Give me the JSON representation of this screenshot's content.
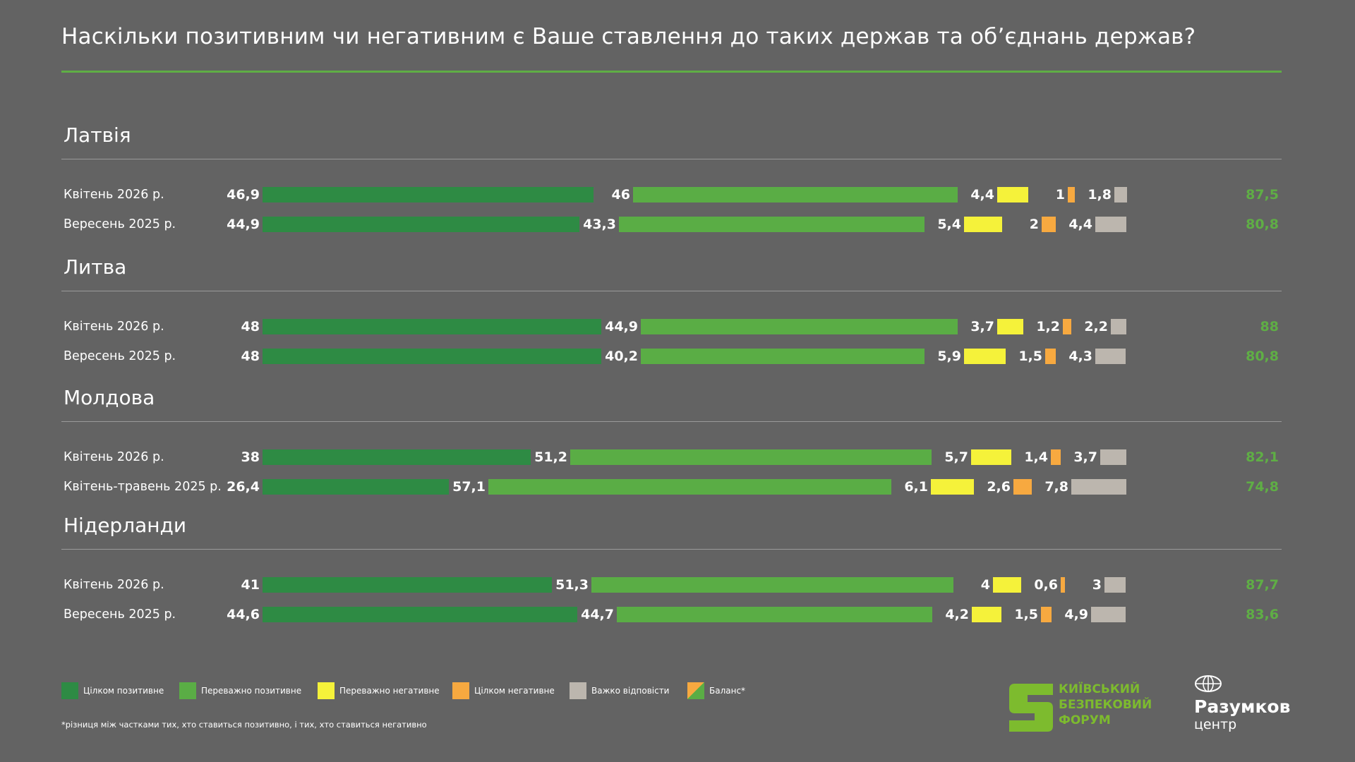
{
  "title": "Наскільки позитивним чи негативним є Ваше ставлення до таких держав та об’єднань держав?",
  "colors": {
    "fully_positive": "#2e8b44",
    "mostly_positive": "#5aad45",
    "mostly_negative": "#f5f23a",
    "fully_negative": "#f7a940",
    "hard_to_say": "#bcb6ae",
    "balance_text": "#5fae45",
    "accent_rule": "#5fae45"
  },
  "legend": [
    {
      "key": "fully_positive",
      "label": "Цілком позитивне"
    },
    {
      "key": "mostly_positive",
      "label": "Переважно позитивне"
    },
    {
      "key": "mostly_negative",
      "label": "Переважно негативне"
    },
    {
      "key": "fully_negative",
      "label": "Цілком негативне"
    },
    {
      "key": "hard_to_say",
      "label": "Важко відповісти"
    },
    {
      "key": "balance",
      "label": "Баланс*"
    }
  ],
  "footnote": "*різниця між частками тих, хто ставиться позитивно, і тих, хто ставиться негативно",
  "logos": {
    "kbf_lines": [
      "КИЇВСЬКИЙ",
      "БЕЗПЕКОВИЙ",
      "ФОРУМ"
    ],
    "razumkov_name": "Разумков",
    "razumkov_sub": "центр"
  },
  "chart_data": {
    "type": "bar",
    "orientation": "horizontal",
    "stacked": true,
    "segments": [
      "Цілком позитивне",
      "Переважно позитивне",
      "Переважно негативне",
      "Цілком негативне",
      "Важко відповісти"
    ],
    "groups": [
      {
        "country": "Латвія",
        "rows": [
          {
            "period": "Квітень  2026 р.",
            "values": [
              "46,9",
              "46",
              "4,4",
              "1",
              "1,8"
            ],
            "balance": "87,5"
          },
          {
            "period": "Вересень 2025 р.",
            "values": [
              "44,9",
              "43,3",
              "5,4",
              "2",
              "4,4"
            ],
            "balance": "80,8"
          }
        ]
      },
      {
        "country": "Литва",
        "rows": [
          {
            "period": "Квітень  2026 р.",
            "values": [
              "48",
              "44,9",
              "3,7",
              "1,2",
              "2,2"
            ],
            "balance": "88"
          },
          {
            "period": "Вересень 2025 р.",
            "values": [
              "48",
              "40,2",
              "5,9",
              "1,5",
              "4,3"
            ],
            "balance": "80,8"
          }
        ]
      },
      {
        "country": "Молдова",
        "rows": [
          {
            "period": "Квітень  2026 р.",
            "values": [
              "38",
              "51,2",
              "5,7",
              "1,4",
              "3,7"
            ],
            "balance": "82,1"
          },
          {
            "period": "Квітень-травень 2025 р.",
            "values": [
              "26,4",
              "57,1",
              "6,1",
              "2,6",
              "7,8"
            ],
            "balance": "74,8"
          }
        ]
      },
      {
        "country": "Нідерланди",
        "rows": [
          {
            "period": "Квітень  2026 р.",
            "values": [
              "41",
              "51,3",
              "4",
              "0,6",
              "3"
            ],
            "balance": "87,7"
          },
          {
            "period": "Вересень 2025 р.",
            "values": [
              "44,6",
              "44,7",
              "4,2",
              "1,5",
              "4,9"
            ],
            "balance": "83,6"
          }
        ]
      }
    ]
  }
}
